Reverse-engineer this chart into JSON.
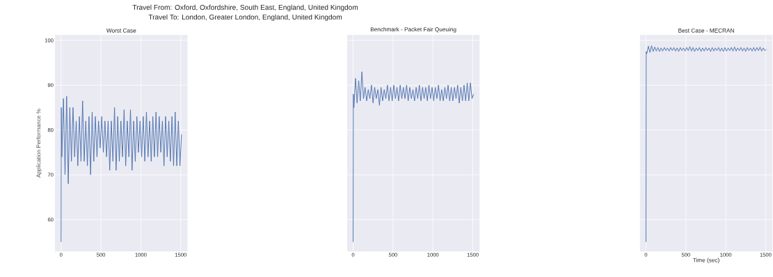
{
  "chart_data": [
    {
      "type": "line",
      "title": "Worst Case",
      "ylabel": "Application Performance %",
      "annotations": [
        "Travel From: Oxford, Oxfordshire, South East, England, United Kingdom",
        "Travel To: London, Greater London, England, United Kingdom"
      ],
      "color": "#4c72b0",
      "grid": true,
      "marker": "none",
      "xlim": [
        -75,
        1585
      ],
      "ylim": [
        52.9,
        101.2
      ],
      "xticks": [
        0,
        500,
        1000,
        1500
      ],
      "yticks": [
        60,
        70,
        80,
        90,
        100
      ],
      "x": [
        0,
        3,
        10,
        30,
        50,
        70,
        90,
        110,
        130,
        150,
        170,
        190,
        210,
        230,
        250,
        270,
        290,
        310,
        330,
        350,
        370,
        390,
        410,
        430,
        450,
        470,
        490,
        510,
        530,
        550,
        570,
        590,
        610,
        630,
        650,
        670,
        690,
        710,
        730,
        750,
        770,
        790,
        810,
        830,
        850,
        870,
        890,
        910,
        930,
        950,
        970,
        990,
        1010,
        1030,
        1050,
        1070,
        1090,
        1110,
        1130,
        1150,
        1170,
        1190,
        1210,
        1230,
        1250,
        1270,
        1290,
        1310,
        1330,
        1350,
        1370,
        1390,
        1410,
        1430,
        1450,
        1470,
        1490,
        1510
      ],
      "values": [
        55,
        85,
        74,
        87,
        70,
        87.5,
        68,
        85,
        73,
        85,
        74,
        82,
        72,
        83,
        73,
        86.5,
        73,
        82,
        72,
        83,
        70,
        84,
        73,
        83,
        74,
        82,
        76,
        83,
        75,
        82,
        74,
        82,
        71,
        82,
        73,
        85,
        71,
        83,
        73,
        82,
        74,
        84.5,
        72,
        82,
        74,
        84.5,
        71,
        82,
        73,
        83,
        75,
        82,
        74,
        83,
        73,
        84,
        74,
        82,
        73,
        83,
        74,
        84,
        74,
        83,
        75,
        82,
        72,
        83,
        74,
        82,
        73,
        83,
        72,
        84,
        72,
        82,
        72,
        79
      ]
    },
    {
      "type": "line",
      "title": "Benchmark - Packet Fair Queuing",
      "color": "#4c72b0",
      "grid": true,
      "marker": "none",
      "tick_labels": "x",
      "xlim": [
        -75,
        1585
      ],
      "ylim": [
        52.9,
        101.2
      ],
      "xticks": [
        0,
        500,
        1000,
        1500
      ],
      "yticks": [
        60,
        70,
        80,
        90,
        100
      ],
      "x": [
        0,
        3,
        10,
        30,
        50,
        70,
        90,
        110,
        130,
        150,
        170,
        190,
        210,
        230,
        250,
        270,
        290,
        310,
        330,
        350,
        370,
        390,
        410,
        430,
        450,
        470,
        490,
        510,
        530,
        550,
        570,
        590,
        610,
        630,
        650,
        670,
        690,
        710,
        730,
        750,
        770,
        790,
        810,
        830,
        850,
        870,
        890,
        910,
        930,
        950,
        970,
        990,
        1010,
        1030,
        1050,
        1070,
        1090,
        1110,
        1130,
        1150,
        1170,
        1190,
        1210,
        1230,
        1250,
        1270,
        1290,
        1310,
        1330,
        1350,
        1370,
        1390,
        1410,
        1430,
        1450,
        1470,
        1490,
        1510
      ],
      "values": [
        55,
        88,
        85,
        91.5,
        86,
        91,
        86.5,
        93,
        87,
        89.5,
        86.5,
        89,
        87,
        90,
        86,
        89.5,
        87,
        89,
        85.5,
        89.5,
        86.5,
        89,
        87,
        90,
        86.5,
        89.5,
        86.5,
        90,
        87,
        89.5,
        86.5,
        90,
        87,
        89.5,
        87,
        90,
        86.5,
        89.5,
        87,
        89,
        86.5,
        89.5,
        87,
        90,
        86.5,
        89.5,
        87,
        89.5,
        86.5,
        90,
        87,
        89.5,
        86.5,
        89.5,
        87,
        90,
        86.5,
        89,
        86.5,
        89.5,
        87,
        90,
        86.5,
        89.5,
        86.5,
        89.5,
        87,
        90,
        86,
        89.5,
        86.5,
        90,
        86.5,
        90.5,
        86.5,
        90.5,
        87,
        88
      ]
    },
    {
      "type": "line",
      "title": "Best Case - MECRAN",
      "xlabel": "Time (sec)",
      "color": "#4c72b0",
      "grid": true,
      "marker": "none",
      "tick_labels": "x",
      "xlim": [
        -75,
        1585
      ],
      "ylim": [
        52.9,
        101.2
      ],
      "xticks": [
        0,
        500,
        1000,
        1500
      ],
      "yticks": [
        60,
        70,
        80,
        90,
        100
      ],
      "x": [
        0,
        3,
        10,
        30,
        50,
        70,
        90,
        110,
        130,
        150,
        170,
        190,
        210,
        230,
        250,
        270,
        290,
        310,
        330,
        350,
        370,
        390,
        410,
        430,
        450,
        470,
        490,
        510,
        530,
        550,
        570,
        590,
        610,
        630,
        650,
        670,
        690,
        710,
        730,
        750,
        770,
        790,
        810,
        830,
        850,
        870,
        890,
        910,
        930,
        950,
        970,
        990,
        1010,
        1030,
        1050,
        1070,
        1090,
        1110,
        1130,
        1150,
        1170,
        1190,
        1210,
        1230,
        1250,
        1270,
        1290,
        1310,
        1330,
        1350,
        1370,
        1390,
        1410,
        1430,
        1450,
        1470,
        1490,
        1510
      ],
      "values": [
        55,
        97.5,
        97,
        98.7,
        97.3,
        98.8,
        97.5,
        98.5,
        97.6,
        98.4,
        97.5,
        98.3,
        97.6,
        98.4,
        97.7,
        98.3,
        97.6,
        98.4,
        97.7,
        98.4,
        97.6,
        98.3,
        97.5,
        98.4,
        97.7,
        98.3,
        97.6,
        98.4,
        97.7,
        98.6,
        97.6,
        98.4,
        97.5,
        98.3,
        97.7,
        98.4,
        97.5,
        98.3,
        97.6,
        98.4,
        97.7,
        98.3,
        97.5,
        98.4,
        97.6,
        98.3,
        97.7,
        98.4,
        97.6,
        98.3,
        97.5,
        98.4,
        97.6,
        98.3,
        97.7,
        98.4,
        97.6,
        98.5,
        97.6,
        98.3,
        97.7,
        98.4,
        97.6,
        98.3,
        97.5,
        98.4,
        97.7,
        98.3,
        97.6,
        98.4,
        97.6,
        98.4,
        97.7,
        98.5,
        97.6,
        98.3,
        97.7,
        98.0
      ]
    }
  ]
}
